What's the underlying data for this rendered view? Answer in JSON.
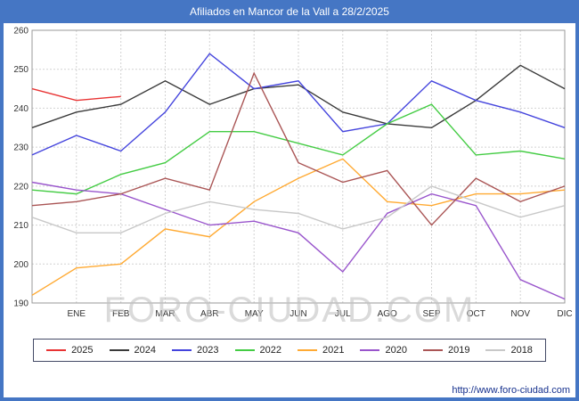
{
  "header": {
    "title": "Afiliados en Mancor de la Vall a 28/2/2025",
    "bar_color": "#4576c4"
  },
  "watermark": {
    "text": "FORO-CIUDAD.COM"
  },
  "footer": {
    "url": "http://www.foro-ciudad.com"
  },
  "chart_data": {
    "type": "line",
    "title": "Afiliados en Mancor de la Vall a 28/2/2025",
    "xlabel": "",
    "ylabel": "",
    "ylim": [
      190,
      260
    ],
    "ytick_step": 10,
    "grid": true,
    "legend_position": "bottom",
    "note": "13 x-positions: index 0 is the value at the left axis (pre-ENE), then one value per labeled month",
    "categories": [
      "",
      "ENE",
      "FEB",
      "MAR",
      "ABR",
      "MAY",
      "JUN",
      "JUL",
      "AGO",
      "SEP",
      "OCT",
      "NOV",
      "DIC"
    ],
    "series": [
      {
        "name": "2025",
        "color": "#e83333",
        "values": [
          245,
          242,
          243,
          null,
          null,
          null,
          null,
          null,
          null,
          null,
          null,
          null,
          null
        ]
      },
      {
        "name": "2024",
        "color": "#3a3a3a",
        "values": [
          235,
          239,
          241,
          247,
          241,
          245,
          246,
          239,
          236,
          235,
          242,
          251,
          245
        ]
      },
      {
        "name": "2023",
        "color": "#4444dd",
        "values": [
          228,
          233,
          229,
          239,
          254,
          245,
          247,
          234,
          236,
          247,
          242,
          239,
          235
        ]
      },
      {
        "name": "2022",
        "color": "#44cc44",
        "values": [
          219,
          218,
          223,
          226,
          234,
          234,
          231,
          228,
          236,
          241,
          228,
          229,
          227
        ]
      },
      {
        "name": "2021",
        "color": "#ffaa33",
        "values": [
          192,
          199,
          200,
          209,
          207,
          216,
          222,
          227,
          216,
          215,
          218,
          218,
          219
        ]
      },
      {
        "name": "2020",
        "color": "#9955cc",
        "values": [
          221,
          219,
          218,
          214,
          210,
          211,
          208,
          198,
          213,
          218,
          215,
          196,
          191
        ]
      },
      {
        "name": "2019",
        "color": "#aa5555",
        "values": [
          215,
          216,
          218,
          222,
          219,
          249,
          226,
          221,
          224,
          210,
          222,
          216,
          220
        ]
      },
      {
        "name": "2018",
        "color": "#c8c8c8",
        "values": [
          212,
          208,
          208,
          213,
          216,
          214,
          213,
          209,
          212,
          220,
          216,
          212,
          215
        ]
      }
    ]
  }
}
